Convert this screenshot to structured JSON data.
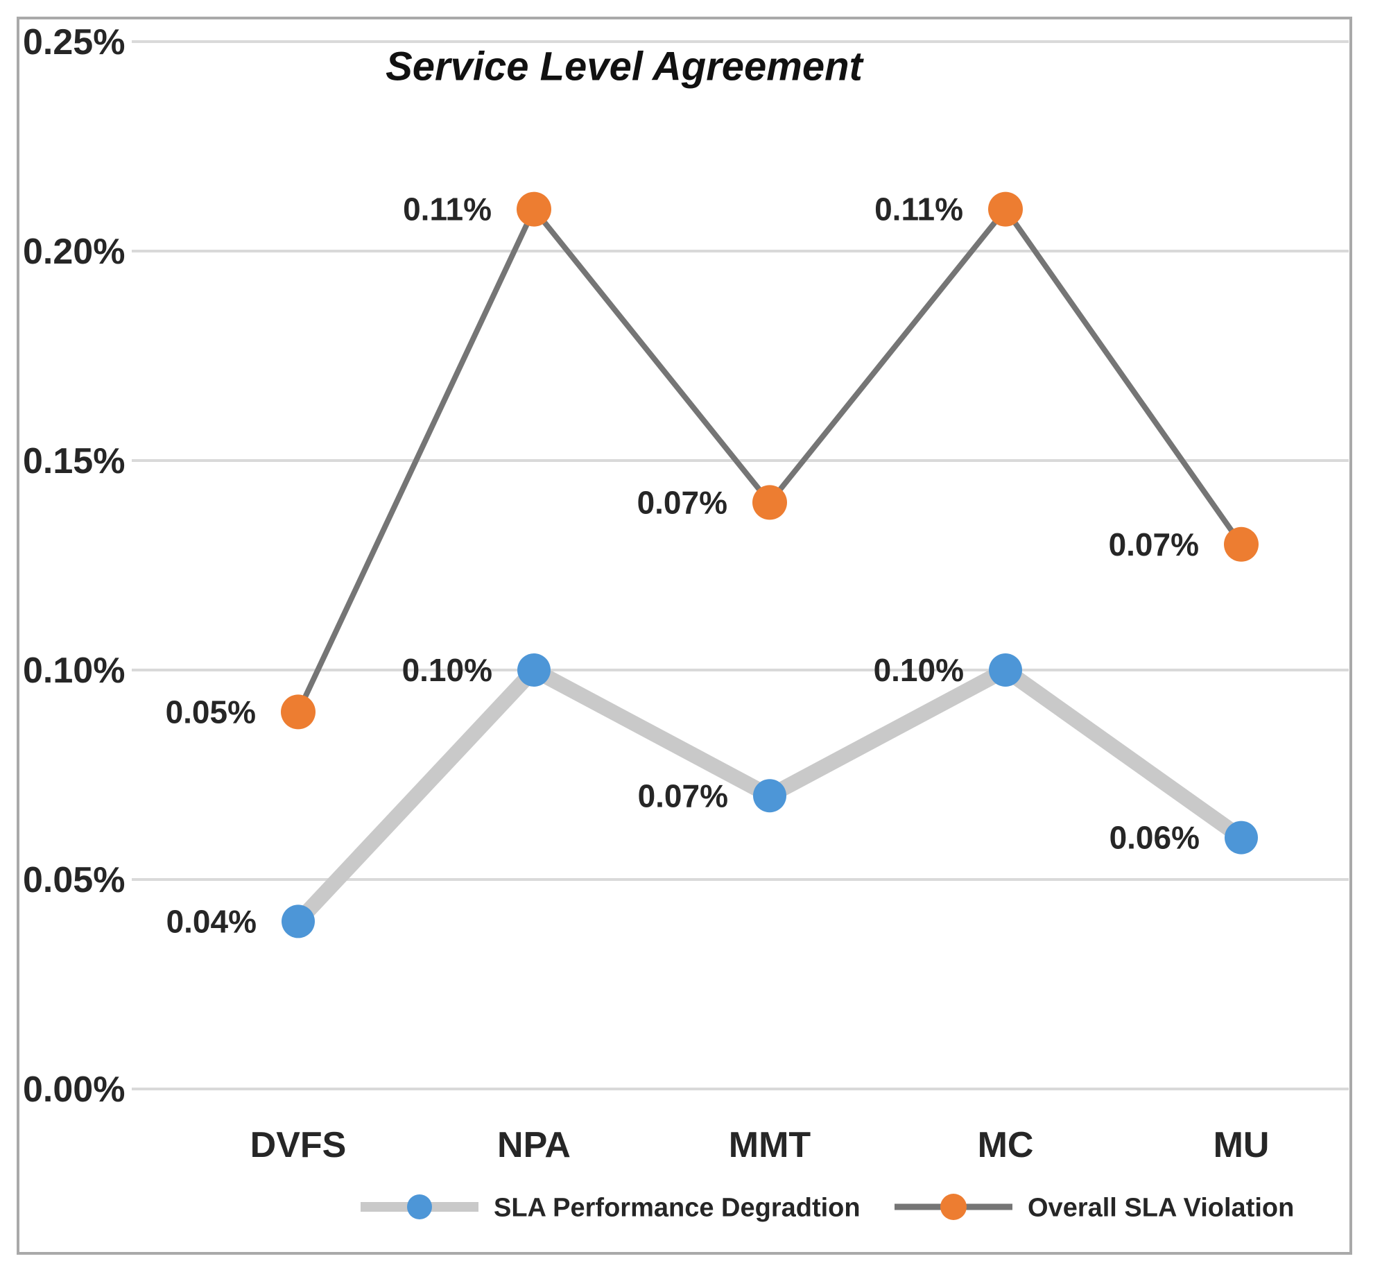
{
  "title": "Service Level Agreement",
  "chart_data": {
    "type": "line",
    "plot_mode": "stacked",
    "title": "Service Level Agreement",
    "categories": [
      "DVFS",
      "NPA",
      "MMT",
      "MC",
      "MU"
    ],
    "series": [
      {
        "name": "SLA Performance Degradtion",
        "values": [
          0.04,
          0.1,
          0.07,
          0.1,
          0.06
        ],
        "labels": [
          "0.04%",
          "0.10%",
          "0.07%",
          "0.10%",
          "0.06%"
        ],
        "marker_color": "#4d96d7",
        "line_color": "#c9c9c9",
        "line_width": 22,
        "marker_radius": 24
      },
      {
        "name": "Overall SLA Violation",
        "values": [
          0.05,
          0.11,
          0.07,
          0.11,
          0.07
        ],
        "labels": [
          "0.05%",
          "0.11%",
          "0.07%",
          "0.11%",
          "0.07%"
        ],
        "marker_color": "#ed7d31",
        "line_color": "#757575",
        "line_width": 8,
        "marker_radius": 25
      }
    ],
    "y_axis": {
      "tick_labels": [
        "0.25%",
        "0.20%",
        "0.15%",
        "0.10%",
        "0.05%",
        "0.00%"
      ],
      "tick_values": [
        0.25,
        0.2,
        0.15,
        0.1,
        0.05,
        0.0
      ],
      "min": 0.0,
      "max": 0.25
    },
    "xlabel": "",
    "ylabel": "",
    "grid": true,
    "legend_position": "bottom",
    "legend": [
      {
        "label": "SLA Performance Degradtion",
        "marker_color": "#4d96d7",
        "line_color": "#c9c9c9"
      },
      {
        "label": "Overall SLA Violation",
        "marker_color": "#ed7d31",
        "line_color": "#757575"
      }
    ]
  },
  "colors": {
    "background": "#ffffff",
    "border": "#a9a9a9",
    "gridline": "#d9d9d9",
    "text": "#262626",
    "series_blue": "#4d96d7",
    "series_orange": "#ed7d31",
    "blue_series_line_gray": "#c9c9c9",
    "orange_series_line_gray": "#757575"
  }
}
